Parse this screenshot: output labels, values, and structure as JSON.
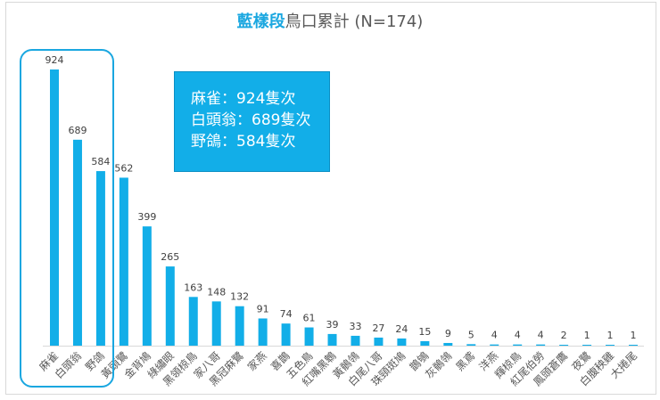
{
  "chart_data": {
    "type": "bar",
    "title_highlight": "藍樣段",
    "title_rest": "鳥口累計 (N=174)",
    "categories": [
      "麻雀",
      "白頭翁",
      "野鴿",
      "黃頭鷺",
      "金背鳩",
      "綠繡眼",
      "黑領椋鳥",
      "家八哥",
      "黑冠麻鷺",
      "家燕",
      "喜鵲",
      "五色鳥",
      "紅嘴黑鵯",
      "黃鶺鴒",
      "白尾八哥",
      "珠頸斑鳩",
      "鵲鴝",
      "灰鶺鴒",
      "黑鳶",
      "洋燕",
      "輝椋鳥",
      "紅尾伯勞",
      "鳳頭蒼鷹",
      "夜鷺",
      "白腹秧雞",
      "大捲尾"
    ],
    "values": [
      924,
      689,
      584,
      562,
      399,
      265,
      163,
      148,
      132,
      91,
      74,
      61,
      39,
      33,
      27,
      24,
      15,
      9,
      5,
      4,
      4,
      4,
      2,
      1,
      1,
      1
    ],
    "ylim": [
      0,
      924
    ],
    "grid": false,
    "bar_color": "#12aee8",
    "highlight_color": "#1aa7e0",
    "callout_lines": [
      "麻雀：924隻次",
      "白頭翁：689隻次",
      "野鴿：584隻次"
    ]
  }
}
